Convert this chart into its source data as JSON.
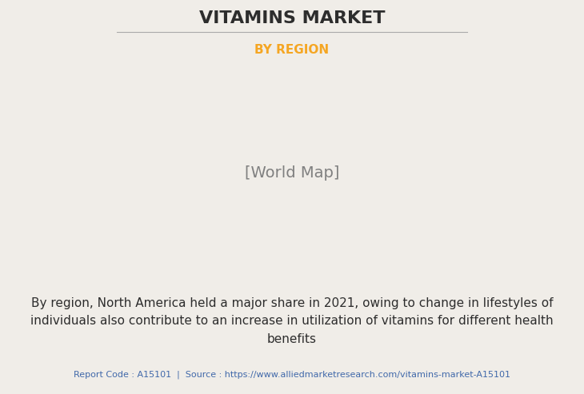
{
  "title": "VITAMINS MARKET",
  "subtitle": "BY REGION",
  "subtitle_color": "#F5A623",
  "title_color": "#2d2d2d",
  "bg_color": "#F0EDE8",
  "map_green_color": "#8FBC8F",
  "map_highlight_color": "#E8E8EE",
  "map_border_color": "#6699BB",
  "map_shadow_color": "#555555",
  "description": "By region, North America held a major share in 2021, owing to change in lifestyles of\nindividuals also contribute to an increase in utilization of vitamins for different health\nbenefits",
  "description_color": "#2d2d2d",
  "footer_text": "Report Code : A15101  |  Source : https://www.alliedmarketresearch.com/vitamins-market-A15101",
  "footer_color": "#4169AA",
  "divider_color": "#AAAAAA",
  "title_fontsize": 16,
  "subtitle_fontsize": 11,
  "desc_fontsize": 11,
  "footer_fontsize": 8
}
